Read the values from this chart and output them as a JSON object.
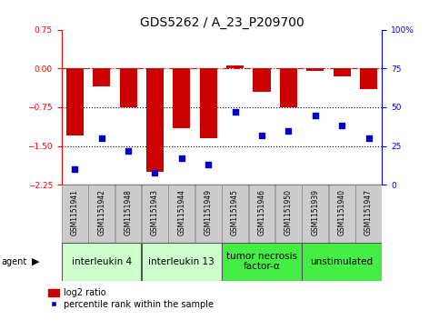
{
  "title": "GDS5262 / A_23_P209700",
  "samples": [
    "GSM1151941",
    "GSM1151942",
    "GSM1151948",
    "GSM1151943",
    "GSM1151944",
    "GSM1151949",
    "GSM1151945",
    "GSM1151946",
    "GSM1151950",
    "GSM1151939",
    "GSM1151940",
    "GSM1151947"
  ],
  "log2_ratio": [
    -1.3,
    -0.35,
    -0.75,
    -2.0,
    -1.15,
    -1.35,
    0.05,
    -0.45,
    -0.75,
    -0.05,
    -0.15,
    -0.4
  ],
  "percentile_rank": [
    10,
    30,
    22,
    8,
    17,
    13,
    47,
    32,
    35,
    45,
    38,
    30
  ],
  "ylim_left": [
    -2.25,
    0.75
  ],
  "ylim_right": [
    0,
    100
  ],
  "yticks_left": [
    -2.25,
    -1.5,
    -0.75,
    0,
    0.75
  ],
  "yticks_right": [
    0,
    25,
    50,
    75,
    100
  ],
  "hlines": [
    0,
    -0.75,
    -1.5
  ],
  "hline_styles": [
    "dashdot",
    "dotted",
    "dotted"
  ],
  "hline_colors": [
    "red",
    "black",
    "black"
  ],
  "bar_color": "#CC0000",
  "dot_color": "#0000CC",
  "agent_groups": [
    {
      "label": "interleukin 4",
      "start": 0,
      "end": 3,
      "color": "#ccffcc"
    },
    {
      "label": "interleukin 13",
      "start": 3,
      "end": 6,
      "color": "#ccffcc"
    },
    {
      "label": "tumor necrosis\nfactor-α",
      "start": 6,
      "end": 9,
      "color": "#44ee44"
    },
    {
      "label": "unstimulated",
      "start": 9,
      "end": 12,
      "color": "#44ee44"
    }
  ],
  "agent_label": "agent",
  "legend_bar_label": "log2 ratio",
  "legend_dot_label": "percentile rank within the sample",
  "title_fontsize": 10,
  "tick_fontsize": 6.5,
  "sample_fontsize": 5.5,
  "agent_fontsize": 7.5
}
